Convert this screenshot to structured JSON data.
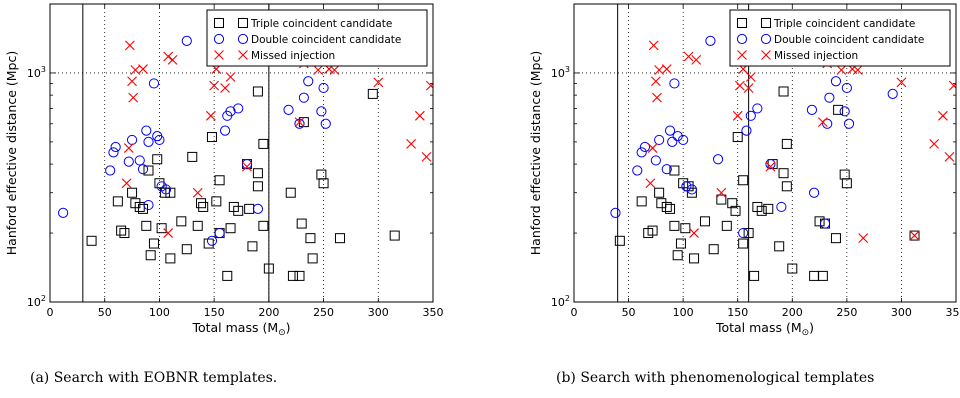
{
  "chart_data": [
    {
      "type": "scatter",
      "caption": "(a) Search with EOBNR templates.",
      "xlabel": "Total mass (M",
      "xlabel_sub": "⊙",
      "xlabel_end": ")",
      "ylabel": "Hanford effective distance (Mpc)",
      "xlim": [
        0,
        350
      ],
      "ylim": [
        100,
        2000
      ],
      "yscale": "log",
      "xticks": [
        "0",
        "50",
        "100",
        "150",
        "200",
        "250",
        "300",
        "350"
      ],
      "yticks": [
        {
          "base": "10",
          "exp": "2",
          "value": 100
        },
        {
          "base": "10",
          "exp": "3",
          "value": 1000
        }
      ],
      "grid": "dotted",
      "vlines": [
        30,
        200
      ],
      "legend": {
        "placement": "top-right",
        "entries": [
          "Triple coincident candidate",
          "Double coincident candidate",
          "Missed injection"
        ]
      },
      "series": [
        {
          "name": "Triple coincident candidate",
          "marker": "square",
          "points": [
            [
              38,
              185
            ],
            [
              62,
              275
            ],
            [
              65,
              205
            ],
            [
              68,
              200
            ],
            [
              75,
              300
            ],
            [
              78,
              270
            ],
            [
              82,
              260
            ],
            [
              85,
              255
            ],
            [
              88,
              215
            ],
            [
              90,
              375
            ],
            [
              92,
              160
            ],
            [
              95,
              180
            ],
            [
              98,
              420
            ],
            [
              100,
              330
            ],
            [
              102,
              210
            ],
            [
              105,
              300
            ],
            [
              110,
              300
            ],
            [
              110,
              155
            ],
            [
              120,
              225
            ],
            [
              125,
              170
            ],
            [
              130,
              430
            ],
            [
              135,
              215
            ],
            [
              138,
              270
            ],
            [
              140,
              260
            ],
            [
              145,
              180
            ],
            [
              148,
              525
            ],
            [
              152,
              275
            ],
            [
              155,
              340
            ],
            [
              155,
              200
            ],
            [
              162,
              130
            ],
            [
              165,
              210
            ],
            [
              168,
              260
            ],
            [
              172,
              250
            ],
            [
              180,
              400
            ],
            [
              182,
              255
            ],
            [
              185,
              175
            ],
            [
              190,
              830
            ],
            [
              190,
              365
            ],
            [
              190,
              320
            ],
            [
              195,
              490
            ],
            [
              195,
              215
            ],
            [
              200,
              140
            ],
            [
              220,
              300
            ],
            [
              222,
              130
            ],
            [
              228,
              130
            ],
            [
              230,
              220
            ],
            [
              232,
              610
            ],
            [
              238,
              190
            ],
            [
              240,
              155
            ],
            [
              248,
              360
            ],
            [
              250,
              330
            ],
            [
              265,
              190
            ],
            [
              295,
              810
            ],
            [
              315,
              195
            ]
          ]
        },
        {
          "name": "Double coincident candidate",
          "marker": "circle",
          "points": [
            [
              12,
              245
            ],
            [
              55,
              375
            ],
            [
              58,
              450
            ],
            [
              60,
              475
            ],
            [
              72,
              410
            ],
            [
              75,
              510
            ],
            [
              82,
              415
            ],
            [
              85,
              380
            ],
            [
              88,
              560
            ],
            [
              90,
              500
            ],
            [
              90,
              265
            ],
            [
              95,
              900
            ],
            [
              98,
              530
            ],
            [
              100,
              510
            ],
            [
              102,
              320
            ],
            [
              106,
              310
            ],
            [
              125,
              1380
            ],
            [
              148,
              185
            ],
            [
              155,
              200
            ],
            [
              160,
              560
            ],
            [
              162,
              650
            ],
            [
              165,
              680
            ],
            [
              172,
              700
            ],
            [
              180,
              400
            ],
            [
              190,
              255
            ],
            [
              218,
              690
            ],
            [
              228,
              600
            ],
            [
              232,
              780
            ],
            [
              236,
              920
            ],
            [
              248,
              680
            ],
            [
              250,
              860
            ],
            [
              252,
              600
            ]
          ]
        },
        {
          "name": "Missed injection",
          "marker": "x",
          "points": [
            [
              70,
              330
            ],
            [
              72,
              470
            ],
            [
              73,
              1320
            ],
            [
              75,
              920
            ],
            [
              76,
              780
            ],
            [
              78,
              1030
            ],
            [
              85,
              1040
            ],
            [
              108,
              200
            ],
            [
              108,
              1180
            ],
            [
              112,
              1140
            ],
            [
              135,
              300
            ],
            [
              147,
              650
            ],
            [
              150,
              880
            ],
            [
              152,
              1040
            ],
            [
              160,
              860
            ],
            [
              165,
              960
            ],
            [
              180,
              390
            ],
            [
              188,
              1230
            ],
            [
              195,
              1150
            ],
            [
              228,
              610
            ],
            [
              232,
              1100
            ],
            [
              245,
              1030
            ],
            [
              255,
              1040
            ],
            [
              260,
              1030
            ],
            [
              300,
              910
            ],
            [
              330,
              490
            ],
            [
              338,
              650
            ],
            [
              344,
              430
            ],
            [
              348,
              880
            ]
          ]
        }
      ]
    },
    {
      "type": "scatter",
      "caption": "(b) Search with phenomenological templates",
      "xlabel": "Total mass (M",
      "xlabel_sub": "⊙",
      "xlabel_end": ")",
      "ylabel": "Hanford effective distance (Mpc)",
      "xlim": [
        0,
        350
      ],
      "ylim": [
        100,
        2000
      ],
      "yscale": "log",
      "xticks": [
        "0",
        "50",
        "100",
        "150",
        "200",
        "250",
        "300",
        "350"
      ],
      "yticks": [
        {
          "base": "10",
          "exp": "2",
          "value": 100
        },
        {
          "base": "10",
          "exp": "3",
          "value": 1000
        }
      ],
      "grid": "dotted",
      "vlines": [
        40,
        160
      ],
      "legend": {
        "placement": "top-right",
        "entries": [
          "Triple coincident candidate",
          "Double coincident candidate",
          "Missed injection"
        ]
      },
      "series": [
        {
          "name": "Triple coincident candidate",
          "marker": "square",
          "points": [
            [
              42,
              185
            ],
            [
              62,
              275
            ],
            [
              68,
              200
            ],
            [
              72,
              205
            ],
            [
              78,
              300
            ],
            [
              80,
              270
            ],
            [
              85,
              260
            ],
            [
              88,
              255
            ],
            [
              92,
              215
            ],
            [
              92,
              375
            ],
            [
              95,
              160
            ],
            [
              98,
              180
            ],
            [
              100,
              330
            ],
            [
              102,
              210
            ],
            [
              105,
              320
            ],
            [
              108,
              300
            ],
            [
              110,
              155
            ],
            [
              120,
              225
            ],
            [
              128,
              170
            ],
            [
              135,
              280
            ],
            [
              140,
              215
            ],
            [
              145,
              270
            ],
            [
              148,
              250
            ],
            [
              150,
              525
            ],
            [
              155,
              340
            ],
            [
              155,
              180
            ],
            [
              160,
              200
            ],
            [
              165,
              130
            ],
            [
              168,
              260
            ],
            [
              172,
              250
            ],
            [
              178,
              255
            ],
            [
              182,
              400
            ],
            [
              188,
              175
            ],
            [
              192,
              830
            ],
            [
              192,
              365
            ],
            [
              195,
              490
            ],
            [
              195,
              320
            ],
            [
              200,
              140
            ],
            [
              220,
              130
            ],
            [
              225,
              225
            ],
            [
              228,
              130
            ],
            [
              230,
              220
            ],
            [
              240,
              190
            ],
            [
              242,
              690
            ],
            [
              248,
              360
            ],
            [
              250,
              330
            ],
            [
              312,
              195
            ]
          ]
        },
        {
          "name": "Double coincident candidate",
          "marker": "circle",
          "points": [
            [
              38,
              245
            ],
            [
              58,
              375
            ],
            [
              62,
              450
            ],
            [
              65,
              475
            ],
            [
              75,
              415
            ],
            [
              78,
              510
            ],
            [
              85,
              380
            ],
            [
              88,
              560
            ],
            [
              90,
              500
            ],
            [
              92,
              900
            ],
            [
              95,
              530
            ],
            [
              100,
              510
            ],
            [
              103,
              320
            ],
            [
              108,
              310
            ],
            [
              125,
              1380
            ],
            [
              132,
              420
            ],
            [
              155,
              200
            ],
            [
              158,
              560
            ],
            [
              162,
              650
            ],
            [
              168,
              700
            ],
            [
              180,
              400
            ],
            [
              190,
              260
            ],
            [
              220,
              300
            ],
            [
              218,
              690
            ],
            [
              230,
              220
            ],
            [
              232,
              600
            ],
            [
              234,
              780
            ],
            [
              240,
              920
            ],
            [
              248,
              680
            ],
            [
              250,
              860
            ],
            [
              252,
              600
            ],
            [
              292,
              810
            ]
          ]
        },
        {
          "name": "Missed injection",
          "marker": "x",
          "points": [
            [
              70,
              330
            ],
            [
              72,
              470
            ],
            [
              73,
              1320
            ],
            [
              75,
              920
            ],
            [
              76,
              780
            ],
            [
              78,
              1030
            ],
            [
              85,
              1040
            ],
            [
              105,
              1180
            ],
            [
              110,
              200
            ],
            [
              112,
              1140
            ],
            [
              135,
              300
            ],
            [
              150,
              650
            ],
            [
              152,
              880
            ],
            [
              155,
              1040
            ],
            [
              160,
              860
            ],
            [
              162,
              960
            ],
            [
              180,
              390
            ],
            [
              188,
              1230
            ],
            [
              195,
              1150
            ],
            [
              228,
              610
            ],
            [
              232,
              1100
            ],
            [
              245,
              1030
            ],
            [
              255,
              1040
            ],
            [
              260,
              1030
            ],
            [
              265,
              190
            ],
            [
              300,
              910
            ],
            [
              312,
              195
            ],
            [
              330,
              490
            ],
            [
              338,
              650
            ],
            [
              344,
              430
            ],
            [
              348,
              880
            ]
          ]
        }
      ]
    }
  ]
}
